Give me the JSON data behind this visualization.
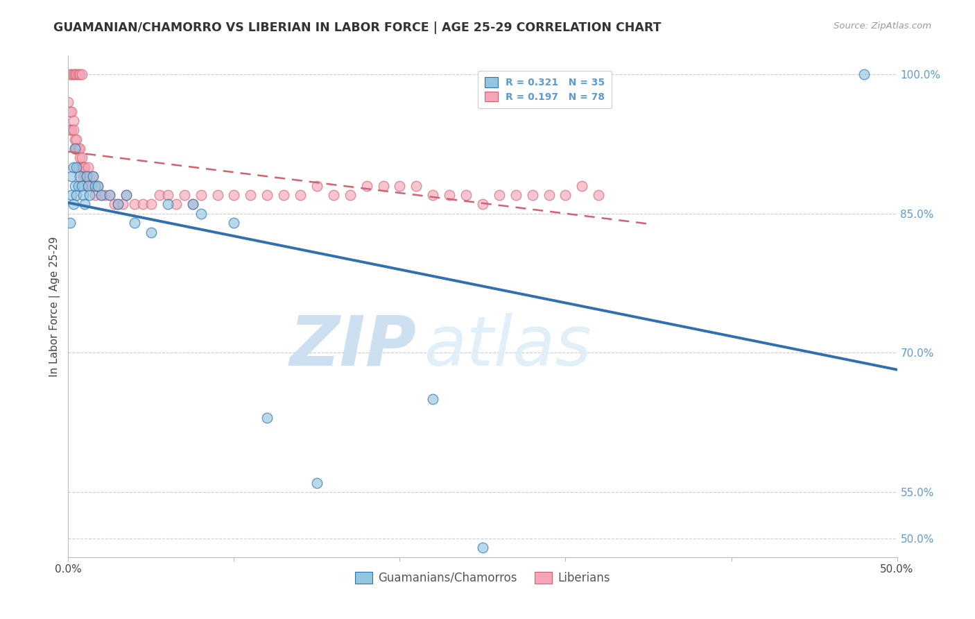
{
  "title": "GUAMANIAN/CHAMORRO VS LIBERIAN IN LABOR FORCE | AGE 25-29 CORRELATION CHART",
  "source": "Source: ZipAtlas.com",
  "ylabel": "In Labor Force | Age 25-29",
  "xlim": [
    0.0,
    0.5
  ],
  "ylim": [
    0.48,
    1.02
  ],
  "legend_label1": "Guamanians/Chamorros",
  "legend_label2": "Liberians",
  "R1": 0.321,
  "N1": 35,
  "R2": 0.197,
  "N2": 78,
  "color_blue": "#92c5de",
  "color_pink": "#f4a6b8",
  "color_blue_line": "#3070b0",
  "color_pink_line": "#d46070",
  "watermark_zip": "ZIP",
  "watermark_atlas": "atlas",
  "background_color": "#ffffff",
  "grid_color": "#cccccc",
  "guamanian_x": [
    0.001,
    0.002,
    0.002,
    0.003,
    0.003,
    0.004,
    0.004,
    0.005,
    0.005,
    0.006,
    0.007,
    0.008,
    0.009,
    0.01,
    0.011,
    0.012,
    0.013,
    0.015,
    0.016,
    0.018,
    0.02,
    0.025,
    0.03,
    0.035,
    0.04,
    0.05,
    0.06,
    0.075,
    0.08,
    0.1,
    0.12,
    0.15,
    0.22,
    0.25,
    0.48
  ],
  "guamanian_y": [
    0.84,
    0.87,
    0.89,
    0.86,
    0.9,
    0.88,
    0.92,
    0.87,
    0.9,
    0.88,
    0.89,
    0.88,
    0.87,
    0.86,
    0.89,
    0.88,
    0.87,
    0.89,
    0.88,
    0.88,
    0.87,
    0.87,
    0.86,
    0.87,
    0.84,
    0.83,
    0.86,
    0.86,
    0.85,
    0.84,
    0.63,
    0.56,
    0.65,
    0.49,
    1.0
  ],
  "liberian_x": [
    0.0,
    0.0,
    0.001,
    0.001,
    0.001,
    0.002,
    0.002,
    0.002,
    0.003,
    0.003,
    0.003,
    0.004,
    0.004,
    0.004,
    0.005,
    0.005,
    0.005,
    0.006,
    0.006,
    0.006,
    0.007,
    0.007,
    0.007,
    0.008,
    0.008,
    0.008,
    0.009,
    0.009,
    0.01,
    0.01,
    0.011,
    0.012,
    0.012,
    0.013,
    0.014,
    0.015,
    0.016,
    0.018,
    0.02,
    0.022,
    0.025,
    0.028,
    0.03,
    0.033,
    0.035,
    0.04,
    0.045,
    0.05,
    0.055,
    0.06,
    0.065,
    0.07,
    0.075,
    0.08,
    0.09,
    0.1,
    0.11,
    0.12,
    0.13,
    0.14,
    0.15,
    0.16,
    0.17,
    0.18,
    0.19,
    0.2,
    0.21,
    0.22,
    0.23,
    0.24,
    0.25,
    0.26,
    0.27,
    0.28,
    0.29,
    0.3,
    0.31,
    0.32
  ],
  "liberian_y": [
    0.94,
    0.97,
    0.96,
    0.94,
    1.0,
    0.94,
    0.96,
    1.0,
    0.95,
    0.94,
    1.0,
    0.93,
    0.92,
    1.0,
    0.93,
    0.92,
    1.0,
    0.92,
    0.9,
    1.0,
    0.92,
    0.91,
    1.0,
    0.91,
    0.9,
    1.0,
    0.9,
    0.89,
    0.9,
    0.89,
    0.89,
    0.9,
    0.88,
    0.89,
    0.88,
    0.89,
    0.87,
    0.88,
    0.87,
    0.87,
    0.87,
    0.86,
    0.86,
    0.86,
    0.87,
    0.86,
    0.86,
    0.86,
    0.87,
    0.87,
    0.86,
    0.87,
    0.86,
    0.87,
    0.87,
    0.87,
    0.87,
    0.87,
    0.87,
    0.87,
    0.88,
    0.87,
    0.87,
    0.88,
    0.88,
    0.88,
    0.88,
    0.87,
    0.87,
    0.87,
    0.86,
    0.87,
    0.87,
    0.87,
    0.87,
    0.87,
    0.88,
    0.87
  ]
}
